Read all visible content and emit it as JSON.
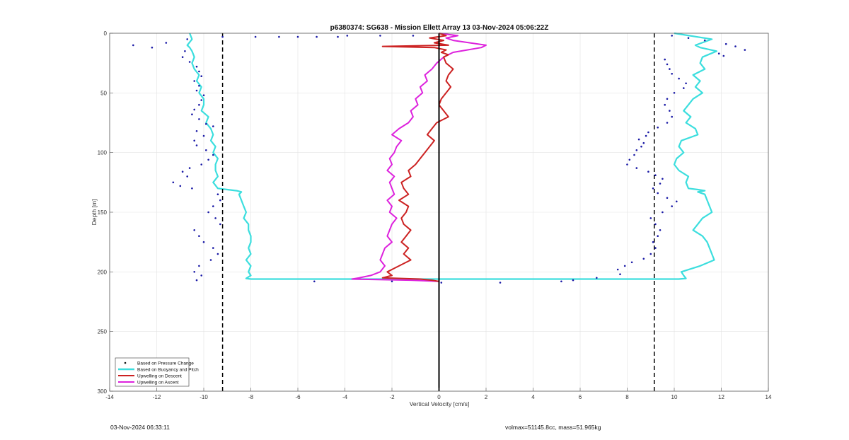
{
  "chart_data": {
    "type": "line",
    "title": "p6380374: SG638 - Mission Ellett Array 13 03-Nov-2024 05:06:22Z",
    "xlabel": "Vertical Velocity [cm/s]",
    "ylabel": "Depth [m]",
    "xlim": [
      -14,
      14
    ],
    "ylim": [
      0,
      300
    ],
    "y_reversed": true,
    "grid": true,
    "x_ticks": [
      "-14",
      "-12",
      "-10",
      "-8",
      "-6",
      "-4",
      "-2",
      "0",
      "2",
      "4",
      "6",
      "8",
      "10",
      "12",
      "14"
    ],
    "y_ticks": [
      "0",
      "50",
      "100",
      "150",
      "200",
      "250",
      "300"
    ],
    "legend_position": "bottom-left",
    "vlines": [
      -9.2,
      9.15
    ],
    "zero_line": 0,
    "series": [
      {
        "name": "Based on Pressure Change",
        "style": "dots",
        "color": "#1a1aa6",
        "points": [
          [
            -13,
            10
          ],
          [
            -12.2,
            12
          ],
          [
            -11.6,
            8
          ],
          [
            -10.7,
            5
          ],
          [
            -9.2,
            3
          ],
          [
            -7.8,
            3
          ],
          [
            -6.8,
            3
          ],
          [
            -6,
            3
          ],
          [
            -5.2,
            3
          ],
          [
            -4.3,
            3
          ],
          [
            -3.9,
            2
          ],
          [
            -2.5,
            2
          ],
          [
            -1.1,
            2
          ],
          [
            -10.8,
            15
          ],
          [
            -10.9,
            20
          ],
          [
            -10.6,
            24
          ],
          [
            -10.3,
            28
          ],
          [
            -10.2,
            32
          ],
          [
            -10.1,
            36
          ],
          [
            -10.4,
            40
          ],
          [
            -10.2,
            44
          ],
          [
            -10.3,
            48
          ],
          [
            -10.0,
            52
          ],
          [
            -10.1,
            56
          ],
          [
            -10.2,
            60
          ],
          [
            -10.4,
            64
          ],
          [
            -10.5,
            68
          ],
          [
            -10.2,
            72
          ],
          [
            -9.9,
            76
          ],
          [
            -9.6,
            78
          ],
          [
            -10.3,
            82
          ],
          [
            -10.0,
            86
          ],
          [
            -10.4,
            90
          ],
          [
            -10.3,
            94
          ],
          [
            -9.9,
            98
          ],
          [
            -9.6,
            102
          ],
          [
            -9.8,
            106
          ],
          [
            -10.1,
            110
          ],
          [
            -10.6,
            113
          ],
          [
            -10.9,
            116
          ],
          [
            -10.7,
            120
          ],
          [
            -11.3,
            125
          ],
          [
            -11.0,
            128
          ],
          [
            -10.5,
            130
          ],
          [
            -9.4,
            135
          ],
          [
            -9.3,
            140
          ],
          [
            -9.6,
            145
          ],
          [
            -9.8,
            150
          ],
          [
            -9.5,
            155
          ],
          [
            -9.3,
            160
          ],
          [
            -10.4,
            165
          ],
          [
            -10.2,
            170
          ],
          [
            -10.0,
            175
          ],
          [
            -9.6,
            180
          ],
          [
            -9.4,
            185
          ],
          [
            -9.7,
            190
          ],
          [
            -10.2,
            195
          ],
          [
            -10.4,
            200
          ],
          [
            -10.1,
            203
          ],
          [
            -10.3,
            207
          ],
          [
            -5.3,
            208
          ],
          [
            -2.0,
            208
          ],
          [
            0.1,
            209
          ],
          [
            2.6,
            209
          ],
          [
            5.2,
            208
          ],
          [
            5.7,
            207
          ],
          [
            6.7,
            205
          ],
          [
            9.9,
            2
          ],
          [
            10.6,
            4
          ],
          [
            11.3,
            6
          ],
          [
            12.2,
            9
          ],
          [
            12.6,
            11
          ],
          [
            13.0,
            14
          ],
          [
            11.9,
            17
          ],
          [
            12.1,
            19
          ],
          [
            9.6,
            22
          ],
          [
            9.7,
            26
          ],
          [
            9.8,
            30
          ],
          [
            9.9,
            34
          ],
          [
            10.2,
            38
          ],
          [
            10.5,
            42
          ],
          [
            10.4,
            46
          ],
          [
            10.0,
            50
          ],
          [
            9.7,
            55
          ],
          [
            9.6,
            60
          ],
          [
            9.8,
            65
          ],
          [
            9.9,
            70
          ],
          [
            9.7,
            75
          ],
          [
            9.3,
            79
          ],
          [
            8.9,
            83
          ],
          [
            8.8,
            86
          ],
          [
            8.5,
            89
          ],
          [
            8.7,
            92
          ],
          [
            8.6,
            95
          ],
          [
            8.4,
            98
          ],
          [
            8.3,
            102
          ],
          [
            8.1,
            106
          ],
          [
            8.0,
            110
          ],
          [
            8.4,
            113
          ],
          [
            8.9,
            116
          ],
          [
            9.2,
            119
          ],
          [
            9.5,
            122
          ],
          [
            9.4,
            126
          ],
          [
            9.1,
            130
          ],
          [
            9.3,
            134
          ],
          [
            9.7,
            138
          ],
          [
            10.1,
            141
          ],
          [
            9.9,
            145
          ],
          [
            9.5,
            150
          ],
          [
            9.0,
            155
          ],
          [
            9.2,
            160
          ],
          [
            9.4,
            165
          ],
          [
            9.3,
            170
          ],
          [
            9.1,
            175
          ],
          [
            9.2,
            180
          ],
          [
            9.0,
            185
          ],
          [
            8.7,
            189
          ],
          [
            8.2,
            192
          ],
          [
            7.9,
            195
          ],
          [
            7.6,
            198
          ],
          [
            7.7,
            202
          ]
        ]
      },
      {
        "name": "Based on Buoyancy and Pitch",
        "style": "line",
        "color": "#3cdede",
        "depth": [
          0,
          5,
          10,
          12,
          15,
          20,
          25,
          30,
          35,
          40,
          45,
          50,
          55,
          60,
          65,
          70,
          75,
          80,
          85,
          90,
          95,
          100,
          105,
          110,
          115,
          120,
          125,
          130,
          131,
          132,
          133,
          135,
          140,
          145,
          150,
          155,
          160,
          165,
          170,
          175,
          180,
          185,
          190,
          195,
          200,
          203,
          205.5,
          206
        ],
        "descent": [
          -10.6,
          -10.5,
          -10.7,
          -10.6,
          -10.5,
          -10.4,
          -10.5,
          -10.4,
          -10.2,
          -10.3,
          -10.1,
          -10.2,
          -10.0,
          -10.0,
          -10.1,
          -9.8,
          -9.9,
          -9.7,
          -9.6,
          -9.7,
          -9.5,
          -9.6,
          -9.4,
          -9.5,
          -9.5,
          -9.4,
          -9.6,
          -9.4,
          -9.0,
          -8.6,
          -8.4,
          -8.5,
          -8.4,
          -8.3,
          -8.2,
          -8.3,
          -8.1,
          -8.1,
          -8.0,
          -8.0,
          -8.1,
          -8.0,
          -8.2,
          -8.0,
          -8.1,
          -8.0,
          -8.2,
          -8.0
        ],
        "ascent": [
          10.0,
          11.6,
          10.9,
          11.1,
          11.8,
          11.2,
          11.1,
          11.3,
          10.8,
          11.1,
          10.9,
          11.2,
          10.8,
          10.6,
          10.4,
          10.7,
          10.5,
          10.9,
          11.0,
          10.3,
          10.2,
          10.4,
          10.1,
          10.0,
          10.2,
          10.6,
          10.5,
          10.6,
          11.0,
          11.3,
          11.0,
          11.3,
          11.4,
          11.5,
          11.6,
          11.2,
          11.0,
          10.8,
          11.2,
          11.4,
          11.5,
          11.6,
          11.7,
          11.1,
          10.3,
          10.4,
          10.5,
          10.2
        ]
      },
      {
        "name": "Upwelling on Descent",
        "style": "line",
        "color": "#cc2222",
        "depth": [
          0,
          2,
          4,
          6,
          8,
          10,
          11,
          12,
          14,
          16,
          18,
          20,
          25,
          30,
          35,
          40,
          45,
          50,
          55,
          60,
          65,
          70,
          75,
          80,
          85,
          90,
          95,
          100,
          105,
          110,
          115,
          120,
          125,
          130,
          135,
          140,
          145,
          150,
          155,
          160,
          165,
          170,
          175,
          180,
          185,
          190,
          195,
          200,
          203,
          205,
          206,
          207,
          208
        ],
        "values": [
          0.0,
          0.3,
          -0.4,
          0.2,
          -0.2,
          0.4,
          -2.4,
          -0.2,
          0.3,
          0.1,
          0.4,
          0.2,
          0.3,
          0.6,
          0.4,
          0.3,
          0.5,
          0.3,
          0.1,
          0.0,
          0.2,
          0.4,
          -0.1,
          -0.3,
          -0.5,
          -0.2,
          -0.4,
          -0.6,
          -0.8,
          -1.0,
          -1.3,
          -1.2,
          -1.6,
          -1.5,
          -1.3,
          -1.7,
          -1.3,
          -1.4,
          -1.6,
          -1.5,
          -1.2,
          -1.4,
          -1.6,
          -1.3,
          -1.5,
          -1.2,
          -1.7,
          -2.2,
          -2.0,
          -2.4,
          -0.8,
          -0.3,
          0.0
        ]
      },
      {
        "name": "Upwelling on Ascent",
        "style": "line",
        "color": "#dd22dd",
        "depth": [
          0,
          2,
          4,
          6,
          8,
          10,
          12,
          14,
          16,
          18,
          20,
          25,
          30,
          35,
          40,
          45,
          50,
          55,
          60,
          65,
          70,
          75,
          80,
          85,
          90,
          95,
          100,
          105,
          110,
          115,
          120,
          125,
          130,
          135,
          140,
          145,
          150,
          155,
          160,
          165,
          170,
          175,
          180,
          185,
          190,
          195,
          200,
          203,
          205,
          206,
          207,
          208
        ],
        "values": [
          0.0,
          0.8,
          0.3,
          0.6,
          1.3,
          2.0,
          1.8,
          1.2,
          0.6,
          0.4,
          0.2,
          -0.1,
          -0.3,
          -0.6,
          -0.5,
          -0.8,
          -0.7,
          -1.0,
          -0.9,
          -1.2,
          -1.1,
          -1.3,
          -1.7,
          -2.0,
          -1.6,
          -1.8,
          -1.9,
          -2.1,
          -2.0,
          -2.2,
          -1.9,
          -2.1,
          -2.0,
          -1.9,
          -2.2,
          -2.0,
          -2.1,
          -1.8,
          -2.0,
          -2.1,
          -2.2,
          -2.0,
          -2.3,
          -2.4,
          -2.5,
          -2.3,
          -2.5,
          -2.9,
          -3.4,
          -3.7,
          -1.2,
          0.0
        ]
      }
    ]
  },
  "footer": {
    "left_text": "03-Nov-2024 06:33:11",
    "right_text": "volmax=51145.8cc, mass=51.965kg"
  }
}
